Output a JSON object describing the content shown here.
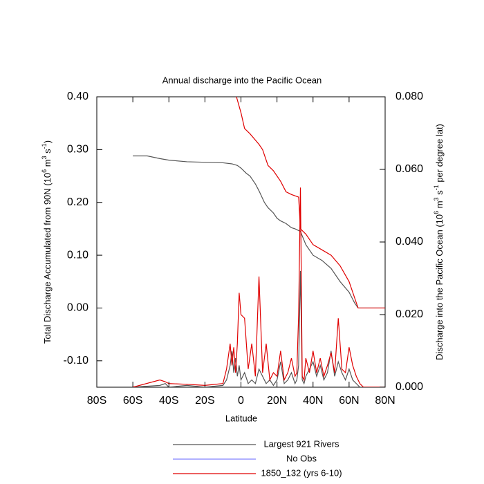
{
  "chart_data": {
    "type": "line",
    "title": "Annual discharge into the Pacific Ocean",
    "x_label": "Latitude",
    "y_label": [
      "Total Discharge Accumulated from 90N (10",
      "6",
      " m",
      "3",
      " s",
      "-1",
      ")"
    ],
    "y2_label": [
      "Discharge into the Pacific Ocean (10",
      "6",
      " m",
      "3",
      " s",
      "-1",
      " per degree lat)"
    ],
    "xlim": [
      -80,
      80
    ],
    "xticks": [
      {
        "value": -80,
        "label": "80S"
      },
      {
        "value": -60,
        "label": "60S"
      },
      {
        "value": -40,
        "label": "40S"
      },
      {
        "value": -20,
        "label": "20S"
      },
      0,
      {
        "value": 20,
        "label": "20N"
      },
      {
        "value": 40,
        "label": "40N"
      },
      {
        "value": 60,
        "label": "60N"
      },
      {
        "value": 80,
        "label": "80N"
      }
    ],
    "ylim": [
      -0.15,
      0.4
    ],
    "yticks": [
      {
        "value": -0.1,
        "label": "-0.10"
      },
      {
        "value": 0,
        "label": "0.00"
      },
      {
        "value": 0.1,
        "label": "0.10"
      },
      {
        "value": 0.2,
        "label": "0.20"
      },
      {
        "value": 0.3,
        "label": "0.30"
      },
      {
        "value": 0.4,
        "label": "0.40"
      }
    ],
    "y2lim": [
      0,
      0.08
    ],
    "y2ticks": [
      {
        "value": 0,
        "label": "0.000"
      },
      {
        "value": 0.02,
        "label": "0.020"
      },
      {
        "value": 0.04,
        "label": "0.040"
      },
      {
        "value": 0.06,
        "label": "0.060"
      },
      {
        "value": 0.08,
        "label": "0.080"
      }
    ],
    "series": [
      {
        "name": "Largest 921 Rivers",
        "color": "#555555",
        "accumulated": {
          "x": [
            -60,
            -52,
            -45,
            -40,
            -30,
            -20,
            -10,
            -5,
            -2,
            0,
            3,
            5,
            8,
            10,
            13,
            15,
            18,
            20,
            22,
            25,
            28,
            30,
            33,
            36,
            40,
            45,
            50,
            55,
            60,
            63,
            65,
            80
          ],
          "values": [
            0.288,
            0.288,
            0.283,
            0.28,
            0.277,
            0.276,
            0.275,
            0.273,
            0.27,
            0.265,
            0.255,
            0.25,
            0.235,
            0.222,
            0.2,
            0.19,
            0.18,
            0.17,
            0.165,
            0.16,
            0.152,
            0.15,
            0.145,
            0.12,
            0.1,
            0.09,
            0.075,
            0.05,
            0.03,
            0.01,
            0.0,
            0.0
          ]
        },
        "per_degree": {
          "x": [
            -60,
            -45,
            -42,
            -40,
            -30,
            -20,
            -10,
            -8,
            -6,
            -5,
            -4,
            -3,
            -2,
            -1,
            0,
            2,
            4,
            6,
            8,
            10,
            12,
            14,
            16,
            18,
            20,
            22,
            24,
            26,
            28,
            30,
            31,
            32,
            33,
            34,
            35,
            36,
            38,
            40,
            42,
            44,
            46,
            48,
            50,
            52,
            54,
            56,
            58,
            60,
            62,
            64,
            66,
            68,
            80
          ],
          "values": [
            0,
            0.0005,
            0.001,
            0,
            0.0005,
            0,
            0.0005,
            0.002,
            0.006,
            0.01,
            0.004,
            0.008,
            0.003,
            0.006,
            0.002,
            0.004,
            0.001,
            0.002,
            0.001,
            0.005,
            0.003,
            0.001,
            0.002,
            0.0005,
            0.002,
            0.007,
            0.001,
            0.002,
            0.004,
            0.001,
            0.002,
            0.006,
            0.032,
            0.002,
            0.001,
            0.003,
            0.005,
            0.007,
            0.003,
            0.006,
            0.002,
            0.004,
            0.01,
            0.003,
            0.007,
            0.004,
            0.002,
            0.005,
            0.002,
            0.001,
            0,
            0,
            0
          ]
        }
      },
      {
        "name": "No Obs",
        "color": "#8080ff"
      },
      {
        "name": "1850_132 (yrs 6-10)",
        "color": "#e00000",
        "accumulated": {
          "x": [
            -2.5,
            0,
            2,
            5,
            10,
            12,
            15,
            18,
            22,
            25,
            28,
            32,
            33,
            36,
            40,
            45,
            50,
            55,
            60,
            63,
            65,
            80
          ],
          "values": [
            0.4,
            0.37,
            0.34,
            0.33,
            0.31,
            0.3,
            0.27,
            0.26,
            0.24,
            0.22,
            0.215,
            0.21,
            0.15,
            0.14,
            0.12,
            0.11,
            0.1,
            0.08,
            0.05,
            0.02,
            0.0,
            0.0
          ]
        },
        "per_degree": {
          "x": [
            -60,
            -45,
            -42,
            -40,
            -30,
            -20,
            -10,
            -8,
            -6,
            -5,
            -4,
            -3,
            -2,
            -1,
            0,
            2,
            4,
            6,
            8,
            10,
            12,
            14,
            16,
            18,
            20,
            22,
            24,
            26,
            28,
            30,
            31,
            32,
            33,
            34,
            35,
            36,
            38,
            40,
            42,
            44,
            46,
            48,
            50,
            52,
            54,
            56,
            58,
            60,
            62,
            64,
            66,
            68,
            80
          ],
          "values": [
            0,
            0.002,
            0.0015,
            0.001,
            0.0008,
            0.0005,
            0.001,
            0.005,
            0.012,
            0.006,
            0.011,
            0.004,
            0.012,
            0.026,
            0.02,
            0.019,
            0.005,
            0.012,
            0.003,
            0.0305,
            0.004,
            0.012,
            0.002,
            0.004,
            0.003,
            0.01,
            0.002,
            0.004,
            0.008,
            0.003,
            0.004,
            0.02,
            0.055,
            0.003,
            0.002,
            0.008,
            0.004,
            0.01,
            0.004,
            0.008,
            0.003,
            0.006,
            0.0095,
            0.004,
            0.019,
            0.005,
            0.004,
            0.011,
            0.006,
            0.003,
            0.001,
            0,
            0
          ]
        }
      }
    ]
  }
}
